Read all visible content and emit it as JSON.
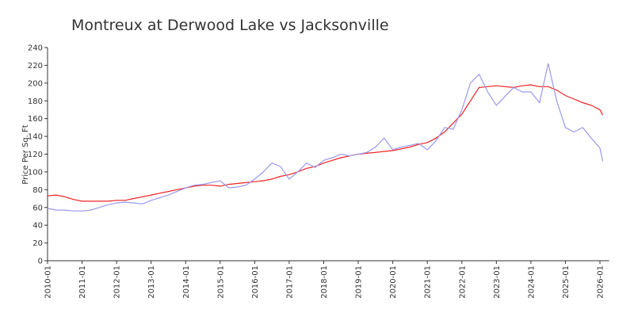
{
  "chart_data": {
    "type": "line",
    "title": "Montreux at Derwood Lake vs Jacksonville",
    "y_label": "Price Per Sq. Ft",
    "x": [
      "2010-01",
      "2010-04",
      "2010-07",
      "2010-10",
      "2011-01",
      "2011-04",
      "2011-07",
      "2011-10",
      "2012-01",
      "2012-04",
      "2012-07",
      "2012-10",
      "2013-01",
      "2013-04",
      "2013-07",
      "2013-10",
      "2014-01",
      "2014-04",
      "2014-07",
      "2014-10",
      "2015-01",
      "2015-04",
      "2015-07",
      "2015-10",
      "2016-01",
      "2016-04",
      "2016-07",
      "2016-10",
      "2017-01",
      "2017-04",
      "2017-07",
      "2017-10",
      "2018-01",
      "2018-04",
      "2018-07",
      "2018-10",
      "2019-01",
      "2019-04",
      "2019-07",
      "2019-10",
      "2020-01",
      "2020-04",
      "2020-07",
      "2020-10",
      "2021-01",
      "2021-04",
      "2021-07",
      "2021-10",
      "2022-01",
      "2022-04",
      "2022-07",
      "2022-10",
      "2023-01",
      "2023-04",
      "2023-07",
      "2023-10",
      "2024-01",
      "2024-04",
      "2024-07",
      "2024-10",
      "2025-01",
      "2025-04",
      "2025-07",
      "2025-10",
      "2026-01",
      "2026-02"
    ],
    "series": [
      {
        "name": "Jacksonville",
        "color": "#ee2222",
        "values": [
          73,
          74,
          72,
          69,
          67,
          67,
          67,
          67,
          68,
          68,
          70,
          72,
          74,
          76,
          78,
          80,
          82,
          84,
          85,
          85,
          84,
          86,
          87,
          88,
          89,
          90,
          92,
          95,
          97,
          100,
          104,
          106,
          110,
          113,
          116,
          118,
          120,
          121,
          122,
          123,
          124,
          126,
          128,
          131,
          133,
          138,
          145,
          155,
          165,
          180,
          195,
          196,
          197,
          196,
          195,
          197,
          198,
          196,
          196,
          192,
          186,
          182,
          178,
          175,
          170,
          164
        ]
      },
      {
        "name": "Montreux at Derwood Lake",
        "color": "#9999ee",
        "values": [
          59,
          57,
          57,
          56,
          56,
          57,
          60,
          63,
          65,
          66,
          65,
          64,
          68,
          71,
          74,
          78,
          82,
          85,
          86,
          88,
          90,
          82,
          83,
          85,
          92,
          100,
          110,
          106,
          92,
          100,
          110,
          105,
          113,
          116,
          120,
          118,
          120,
          122,
          128,
          138,
          125,
          128,
          130,
          132,
          125,
          135,
          150,
          148,
          170,
          200,
          210,
          190,
          175,
          185,
          195,
          190,
          190,
          178,
          222,
          180,
          150,
          145,
          150,
          138,
          127,
          112
        ]
      }
    ],
    "xticks": [
      "2010-01",
      "2011-01",
      "2012-01",
      "2013-01",
      "2014-01",
      "2015-01",
      "2016-01",
      "2017-01",
      "2018-01",
      "2019-01",
      "2020-01",
      "2021-01",
      "2022-01",
      "2023-01",
      "2024-01",
      "2025-01",
      "2026-01"
    ],
    "ylim": [
      0,
      240
    ],
    "yticks": [
      0,
      20,
      40,
      60,
      80,
      100,
      120,
      140,
      160,
      180,
      200,
      220,
      240
    ]
  }
}
